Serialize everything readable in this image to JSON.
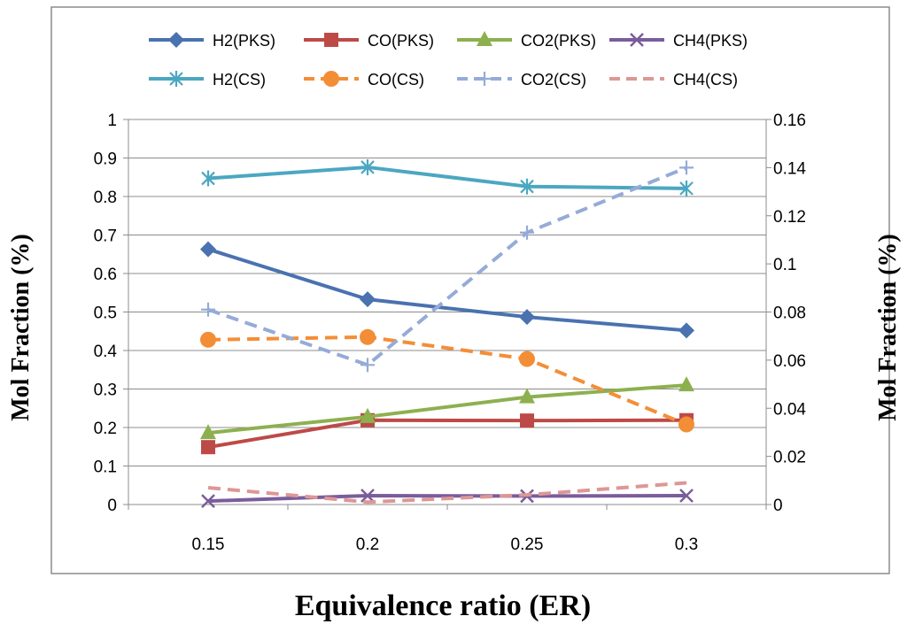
{
  "chart_data": {
    "type": "line",
    "xlabel": "Equivalence ratio (ER)",
    "ylabel_left": "Mol Fraction (%)",
    "ylabel_right": "Mol Fraction (%)",
    "categories": [
      "0.15",
      "0.2",
      "0.25",
      "0.3"
    ],
    "y_left": {
      "min": 0,
      "max": 1,
      "ticks": [
        "0",
        "0.1",
        "0.2",
        "0.3",
        "0.4",
        "0.5",
        "0.6",
        "0.7",
        "0.8",
        "0.9",
        "1"
      ]
    },
    "y_right": {
      "min": 0,
      "max": 0.16,
      "ticks": [
        "0",
        "0.02",
        "0.04",
        "0.06",
        "0.08",
        "0.1",
        "0.12",
        "0.14",
        "0.16"
      ]
    },
    "grid": "horizontal",
    "legend_position": "top",
    "series": [
      {
        "name": "H2(PKS)",
        "axis": "left",
        "color": "#4a72b0",
        "dash": false,
        "marker": "diamond",
        "values": [
          0.663,
          0.533,
          0.487,
          0.452
        ]
      },
      {
        "name": "CO(PKS)",
        "axis": "left",
        "color": "#bd4a47",
        "dash": false,
        "marker": "square",
        "values": [
          0.149,
          0.219,
          0.218,
          0.219
        ]
      },
      {
        "name": "CO2(PKS)",
        "axis": "left",
        "color": "#8db04f",
        "dash": false,
        "marker": "triangle",
        "values": [
          0.186,
          0.228,
          0.279,
          0.31
        ]
      },
      {
        "name": "CH4(PKS)",
        "axis": "left",
        "color": "#7a5d9c",
        "dash": false,
        "marker": "x",
        "values": [
          0.009,
          0.023,
          0.022,
          0.023
        ]
      },
      {
        "name": "H2(CS)",
        "axis": "left",
        "color": "#4ba7c1",
        "dash": false,
        "marker": "asterisk",
        "values": [
          0.847,
          0.876,
          0.826,
          0.821
        ]
      },
      {
        "name": "CO(CS)",
        "axis": "left",
        "color": "#f38e37",
        "dash": true,
        "marker": "circle",
        "values": [
          0.428,
          0.435,
          0.378,
          0.208
        ]
      },
      {
        "name": "CO2(CS)",
        "axis": "right",
        "color": "#95abd8",
        "dash": true,
        "marker": "plus",
        "values": [
          0.081,
          0.058,
          0.113,
          0.14
        ]
      },
      {
        "name": "CH4(CS)",
        "axis": "right",
        "color": "#dd9795",
        "dash": true,
        "marker": "none",
        "values": [
          0.007,
          0.001,
          0.004,
          0.009
        ]
      }
    ]
  }
}
